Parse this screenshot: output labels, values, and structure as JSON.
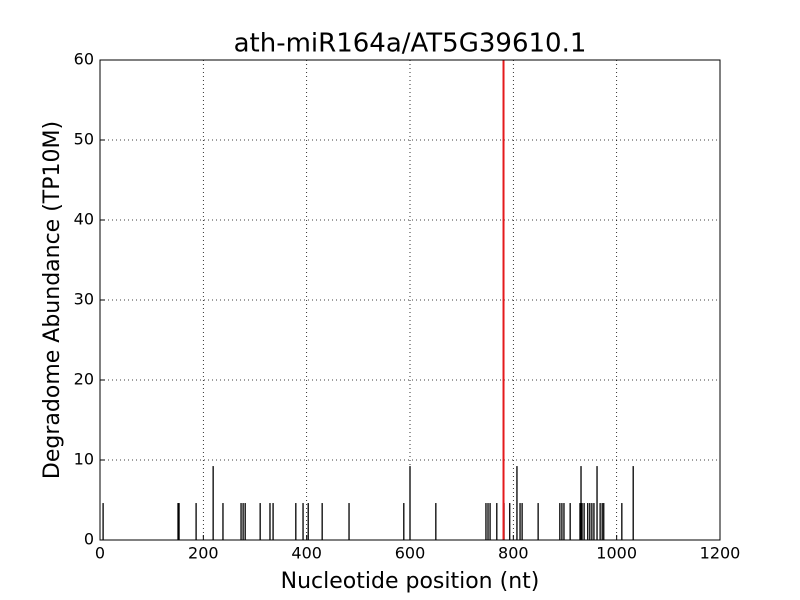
{
  "chart_data": {
    "type": "tplot",
    "title": "ath-miR164a/AT5G39610.1",
    "xlabel": "Nucleotide position (nt)",
    "ylabel": "Degradome Abundance (TP10M)",
    "xlim": [
      0,
      1200
    ],
    "ylim": [
      0,
      60
    ],
    "xticks": [
      0,
      200,
      400,
      600,
      800,
      1000,
      1200
    ],
    "yticks": [
      0,
      10,
      20,
      30,
      40,
      50,
      60
    ],
    "grid": true,
    "color": "#000000",
    "x": [
      6,
      151,
      153,
      186,
      219,
      238,
      273,
      277,
      281,
      310,
      329,
      335,
      379,
      393,
      403,
      430,
      482,
      588,
      600,
      650,
      747,
      751,
      755,
      768,
      782,
      793,
      807,
      813,
      817,
      848,
      890,
      894,
      898,
      910,
      929,
      931,
      933,
      937,
      944,
      948,
      952,
      956,
      962,
      968,
      972,
      975,
      1010,
      1032
    ],
    "values": [
      4.62,
      4.62,
      4.62,
      4.62,
      9.24,
      4.62,
      4.62,
      4.62,
      4.62,
      4.62,
      4.62,
      4.62,
      4.62,
      4.62,
      4.62,
      4.62,
      4.62,
      4.62,
      9.24,
      4.62,
      4.62,
      4.62,
      4.62,
      4.62,
      4.62,
      4.62,
      9.24,
      4.62,
      4.62,
      4.62,
      4.62,
      4.62,
      4.62,
      4.62,
      4.62,
      9.24,
      4.62,
      4.62,
      4.62,
      4.62,
      4.62,
      4.62,
      9.24,
      4.62,
      4.62,
      4.62,
      4.62,
      9.24
    ],
    "highlight": {
      "x": 781,
      "value": 60,
      "color": "#e41a1c"
    }
  }
}
